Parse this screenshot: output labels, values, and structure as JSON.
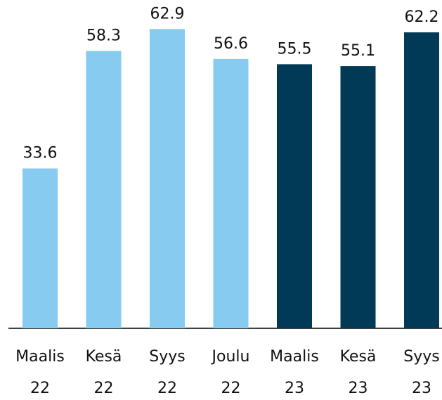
{
  "chart_data": {
    "type": "bar",
    "categories": [
      [
        "Maalis",
        "22"
      ],
      [
        "Kesä",
        "22"
      ],
      [
        "Syys",
        "22"
      ],
      [
        "Joulu",
        "22"
      ],
      [
        "Maalis",
        "23"
      ],
      [
        "Kesä",
        "23"
      ],
      [
        "Syys",
        "23"
      ]
    ],
    "values": [
      33.6,
      58.3,
      62.9,
      56.6,
      55.5,
      55.1,
      62.2
    ],
    "colors": [
      "#87cbf0",
      "#87cbf0",
      "#87cbf0",
      "#87cbf0",
      "#003a57",
      "#003a57",
      "#003a57"
    ],
    "ylim": [
      0,
      69
    ]
  }
}
